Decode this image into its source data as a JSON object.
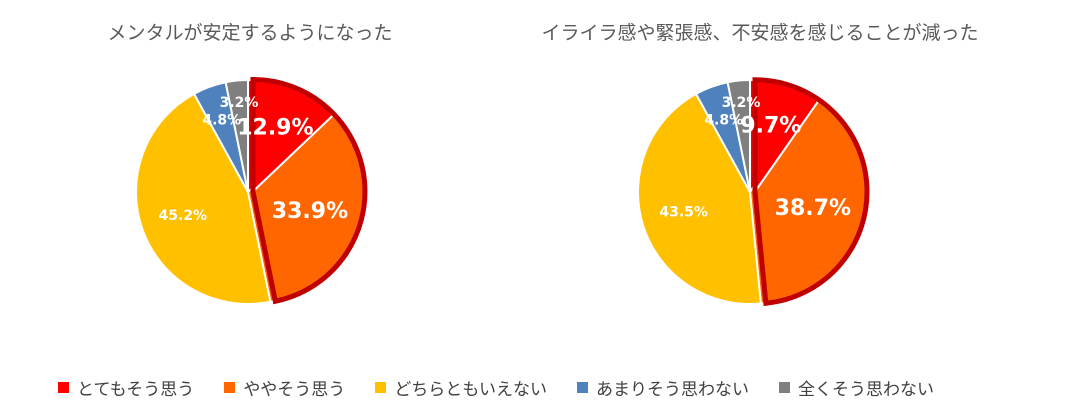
{
  "chart_data": [
    {
      "type": "pie",
      "title": "メンタルが安定するようになった",
      "categories": [
        "とてもそう思う",
        "ややそう思う",
        "どちらともいえない",
        "あまりそう思わない",
        "全くそう思わない"
      ],
      "values": [
        12.9,
        33.9,
        45.2,
        4.8,
        3.2
      ],
      "labels": [
        "12.9%",
        "33.9%",
        "45.2%",
        "4.8%",
        "3.2%"
      ],
      "highlighted": [
        0,
        1
      ],
      "legend": "bottom"
    },
    {
      "type": "pie",
      "title": "イライラ感や緊張感、不安感を感じることが減った",
      "categories": [
        "とてもそう思う",
        "ややそう思う",
        "どちらともいえない",
        "あまりそう思わない",
        "全くそう思わない"
      ],
      "values": [
        9.7,
        38.7,
        43.5,
        4.8,
        3.2
      ],
      "labels": [
        "9.7%",
        "38.7%",
        "43.5%",
        "4.8%",
        "3.2%"
      ],
      "highlighted": [
        0,
        1
      ],
      "legend": "bottom"
    }
  ],
  "colors": [
    "#ff0000",
    "#ff6600",
    "#ffc000",
    "#4f81bd",
    "#7f7f7f"
  ],
  "highlight_color": "#c00000",
  "legend": {
    "items": [
      {
        "label": "とてもそう思う",
        "color": "#ff0000"
      },
      {
        "label": "ややそう思う",
        "color": "#ff6600"
      },
      {
        "label": "どちらともいえない",
        "color": "#ffc000"
      },
      {
        "label": "あまりそう思わない",
        "color": "#4f81bd"
      },
      {
        "label": "全くそう思わない",
        "color": "#7f7f7f"
      }
    ]
  }
}
